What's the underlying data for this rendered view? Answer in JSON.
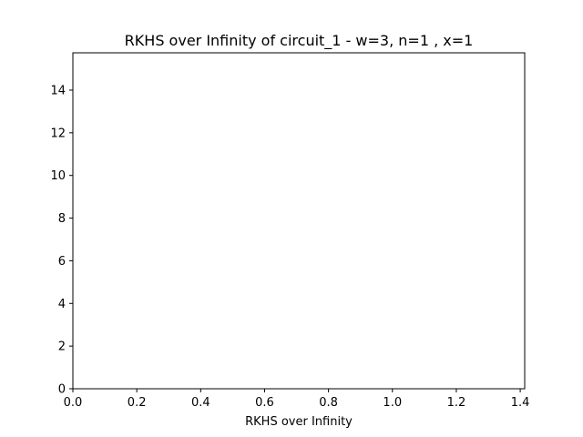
{
  "chart_data": {
    "type": "bar",
    "title": "RKHS over Infinity of circuit_1 - w=3, n=1 , x=1",
    "xlabel": "RKHS over Infinity",
    "ylabel": "",
    "xlim": [
      0.0,
      1.414
    ],
    "ylim": [
      0,
      15.75
    ],
    "xticks": [
      "0.0",
      "0.2",
      "0.4",
      "0.6",
      "0.8",
      "1.0",
      "1.2",
      "1.4"
    ],
    "yticks": [
      "0",
      "2",
      "4",
      "6",
      "8",
      "10",
      "12",
      "14"
    ],
    "series": [],
    "grid": false
  }
}
